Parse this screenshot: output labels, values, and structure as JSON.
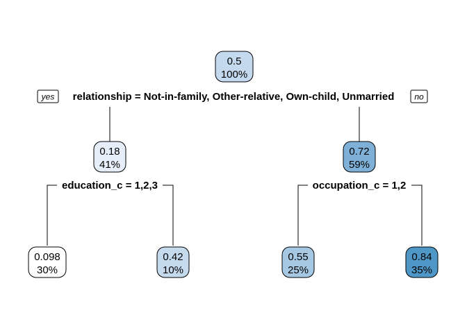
{
  "tree": {
    "nodes": [
      {
        "id": "root",
        "value": "0.5",
        "percent": "100%",
        "fill": "#c4d9ee"
      },
      {
        "id": "left",
        "value": "0.18",
        "percent": "41%",
        "fill": "#e6eff9"
      },
      {
        "id": "right",
        "value": "0.72",
        "percent": "59%",
        "fill": "#7fb1d8"
      },
      {
        "id": "left-left",
        "value": "0.098",
        "percent": "30%",
        "fill": "#ffffff"
      },
      {
        "id": "left-right",
        "value": "0.42",
        "percent": "10%",
        "fill": "#c6daee"
      },
      {
        "id": "right-left",
        "value": "0.55",
        "percent": "25%",
        "fill": "#a6c8e3"
      },
      {
        "id": "right-right",
        "value": "0.84",
        "percent": "35%",
        "fill": "#4f97c7"
      }
    ],
    "splits": {
      "root": "relationship =  Not-in-family, Other-relative, Own-child, Unmarried",
      "left": "education_c = 1,2,3",
      "right": "occupation_c = 1,2"
    },
    "branch_tags": {
      "yes": "yes",
      "no": "no"
    }
  }
}
